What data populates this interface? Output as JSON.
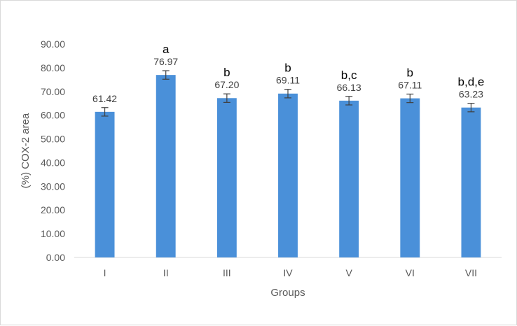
{
  "chart_data": {
    "type": "bar",
    "categories": [
      "I",
      "II",
      "III",
      "IV",
      "V",
      "VI",
      "VII"
    ],
    "values": [
      61.42,
      76.97,
      67.2,
      69.11,
      66.13,
      67.11,
      63.23
    ],
    "value_labels": [
      "61.42",
      "76.97",
      "67.20",
      "69.11",
      "66.13",
      "67.11",
      "63.23"
    ],
    "error": [
      1.8,
      1.8,
      1.8,
      1.8,
      1.8,
      1.8,
      1.8
    ],
    "significance": [
      "",
      "a",
      "b",
      "b",
      "b,c",
      "b",
      "b,d,e"
    ],
    "xlabel": "Groups",
    "ylabel": "(%) COX-2 area",
    "ylim": [
      0,
      90
    ],
    "yticks": [
      "0.00",
      "10.00",
      "20.00",
      "30.00",
      "40.00",
      "50.00",
      "60.00",
      "70.00",
      "80.00",
      "90.00"
    ],
    "grid": false,
    "bar_color": "#4a90d9",
    "axis_color": "#d9d9d9"
  }
}
